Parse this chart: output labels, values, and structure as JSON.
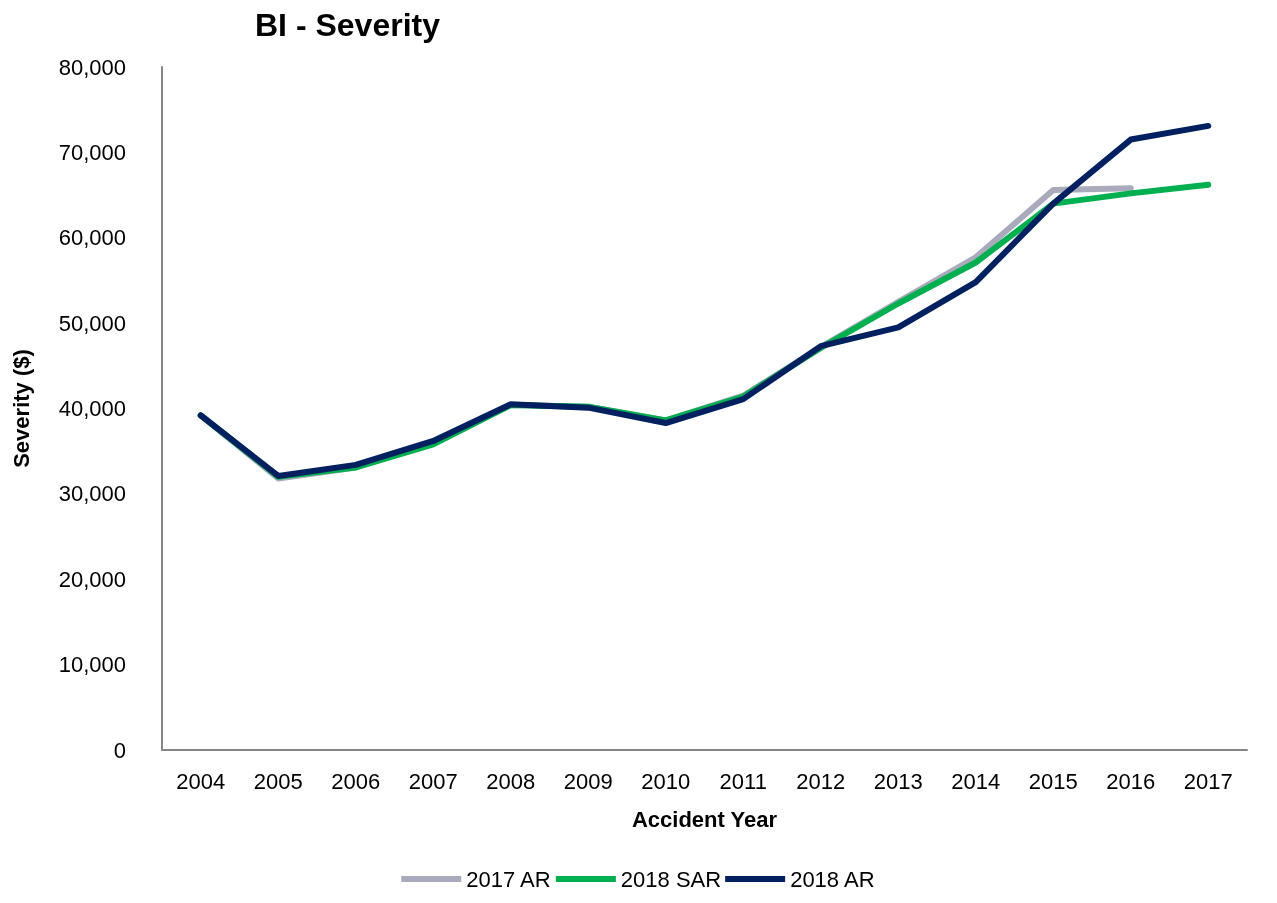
{
  "chart_data": {
    "type": "line",
    "title": "BI - Severity",
    "xlabel": "Accident Year",
    "ylabel": "Severity ($)",
    "categories": [
      "2004",
      "2005",
      "2006",
      "2007",
      "2008",
      "2009",
      "2010",
      "2011",
      "2012",
      "2013",
      "2014",
      "2015",
      "2016",
      "2017"
    ],
    "series": [
      {
        "name": "2017 AR",
        "color": "#a9abbc",
        "values": [
          39200,
          31800,
          33100,
          35900,
          40400,
          40200,
          38600,
          41500,
          47200,
          52500,
          57700,
          65600,
          65800,
          null
        ]
      },
      {
        "name": "2018 SAR",
        "color": "#00b050",
        "values": [
          39200,
          32000,
          33100,
          35800,
          40400,
          40200,
          38600,
          41400,
          47100,
          52300,
          57100,
          64000,
          65200,
          66200
        ]
      },
      {
        "name": "2018 AR",
        "color": "#002060",
        "values": [
          39200,
          32100,
          33400,
          36200,
          40500,
          40100,
          38300,
          41100,
          47300,
          49500,
          54800,
          64000,
          71500,
          73100
        ]
      }
    ],
    "ylim": [
      0,
      80000
    ],
    "yticks": [
      0,
      {
        "value": 10000,
        "label": "10,000"
      },
      {
        "value": 20000,
        "label": "20,000"
      },
      {
        "value": 30000,
        "label": "30,000"
      },
      {
        "value": 40000,
        "label": "40,000"
      },
      {
        "value": 50000,
        "label": "50,000"
      },
      {
        "value": 60000,
        "label": "60,000"
      },
      {
        "value": 70000,
        "label": "70,000"
      },
      {
        "value": 80000,
        "label": "80,000"
      }
    ],
    "grid": false,
    "legend": "bottom",
    "marker": "none",
    "line_style": "solid"
  }
}
